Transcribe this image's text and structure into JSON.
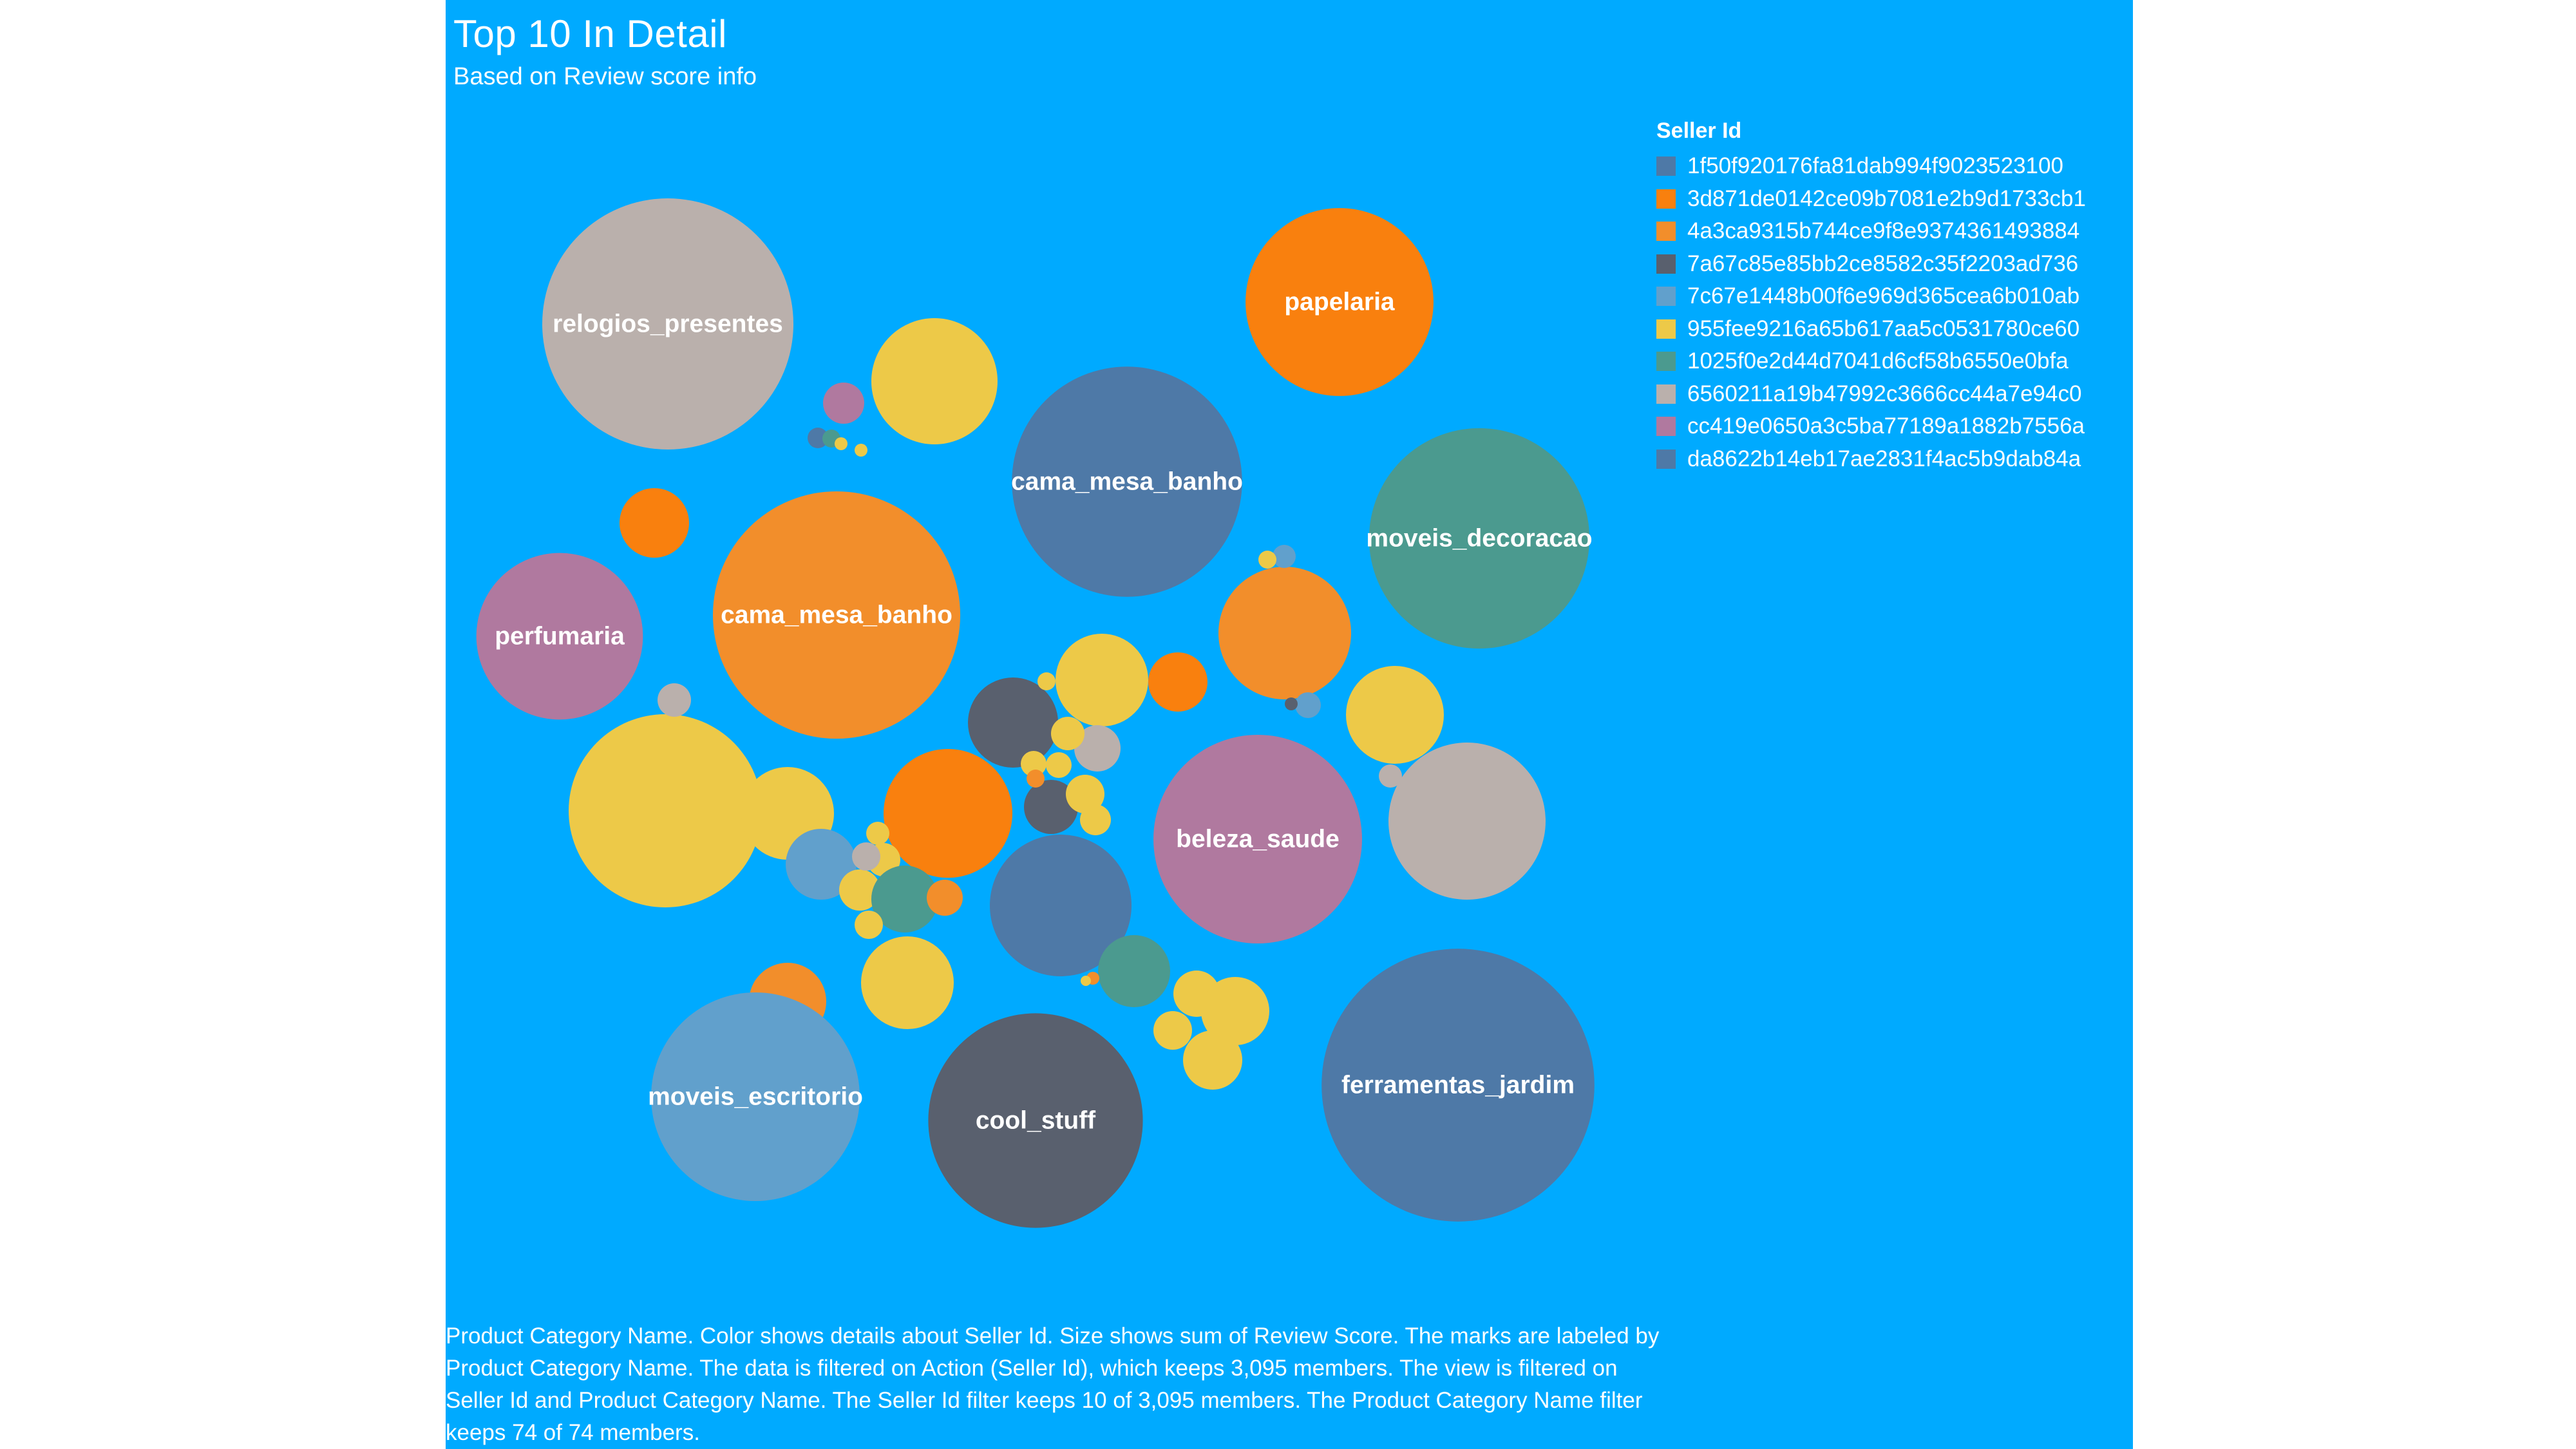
{
  "title": "Top 10 In Detail",
  "subtitle": "Based on Review score info",
  "legend": {
    "title": "Seller Id",
    "items": [
      {
        "label": "1f50f920176fa81dab994f9023523100",
        "color": "#4e79a7"
      },
      {
        "label": "3d871de0142ce09b7081e2b9d1733cb1",
        "color": "#f9800e"
      },
      {
        "label": "4a3ca9315b744ce9f8e9374361493884",
        "color": "#f28e2b"
      },
      {
        "label": "7a67c85e85bb2ce8582c35f2203ad736",
        "color": "#59606e"
      },
      {
        "label": "7c67e1448b00f6e969d365cea6b010ab",
        "color": "#61a0cc"
      },
      {
        "label": "955fee9216a65b617aa5c0531780ce60",
        "color": "#edc948"
      },
      {
        "label": "1025f0e2d44d7041d6cf58b6550e0bfa",
        "color": "#4b9a8f"
      },
      {
        "label": "6560211a19b47992c3666cc44a7e94c0",
        "color": "#bab0ac"
      },
      {
        "label": "cc419e0650a3c5ba77189a1882b7556a",
        "color": "#b0799f"
      },
      {
        "label": "da8622b14eb17ae2831f4ac5b9dab84a",
        "color": "#4e79a7"
      }
    ]
  },
  "footnote": "Product Category Name.  Color shows details about Seller Id.  Size shows sum of Review Score.  The marks are labeled by Product Category Name. The data is filtered on Action (Seller Id), which keeps 3,095 members. The view is filtered on Seller Id and Product Category Name. The Seller Id filter keeps 10 of 3,095 members. The Product Category Name filter keeps 74 of 74 members.",
  "chart_data": {
    "type": "packed_bubble",
    "labeled_bubbles": [
      {
        "label": "relogios_presentes",
        "seller": "6560211a19b47992c3666cc44a7e94c0",
        "value": 100
      },
      {
        "label": "cama_mesa_banho",
        "seller": "4a3ca9315b744ce9f8e9374361493884",
        "value": 97
      },
      {
        "label": "cama_mesa_banho",
        "seller": "1f50f920176fa81dab994f9023523100",
        "value": 84
      },
      {
        "label": "papelaria",
        "seller": "3d871de0142ce09b7081e2b9d1733cb1",
        "value": 56
      },
      {
        "label": "moveis_decoracao",
        "seller": "1025f0e2d44d7041d6cf58b6550e0bfa",
        "value": 77
      },
      {
        "label": "perfumaria",
        "seller": "cc419e0650a3c5ba77189a1882b7556a",
        "value": 44
      },
      {
        "label": "beleza_saude",
        "seller": "cc419e0650a3c5ba77189a1882b7556a",
        "value": 69
      },
      {
        "label": "ferramentas_jardim",
        "seller": "da8622b14eb17ae2831f4ac5b9dab84a",
        "value": 118
      },
      {
        "label": "moveis_escritorio",
        "seller": "7c67e1448b00f6e969d365cea6b010ab",
        "value": 69
      },
      {
        "label": "cool_stuff",
        "seller": "7a67c85e85bb2ce8582c35f2203ad736",
        "value": 73
      }
    ]
  }
}
